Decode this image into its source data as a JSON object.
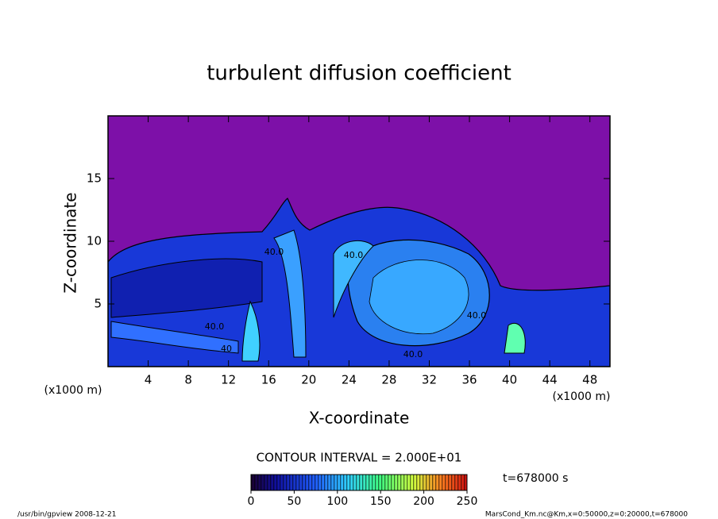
{
  "chart_data": {
    "type": "contour",
    "title": "turbulent diffusion coefficient",
    "xlabel": "X-coordinate",
    "ylabel": "Z-coordinate",
    "xunit": "(x1000 m)",
    "yunit": "(x1000 m)",
    "xlim": [
      0,
      50
    ],
    "xticks": [
      4,
      8,
      12,
      16,
      20,
      24,
      28,
      32,
      36,
      40,
      44,
      48
    ],
    "ylim": [
      0,
      20
    ],
    "yticks": [
      5,
      10,
      15
    ],
    "background_color": "#7d10a8",
    "annotations": [
      "40.0",
      "40",
      "40.0",
      "40.0",
      "40.0",
      "40.0"
    ],
    "contour_interval": "CONTOUR INTERVAL = 2.000E+01",
    "time": "t=678000 s",
    "colorbar": {
      "lim": [
        0,
        250
      ],
      "ticks": [
        0,
        50,
        100,
        150,
        200,
        250
      ]
    },
    "footer_left": "/usr/bin/gpview  2008-12-21",
    "footer_right": "MarsCond_Km.nc@Km,x=0:50000,z=0:20000,t=678000"
  }
}
